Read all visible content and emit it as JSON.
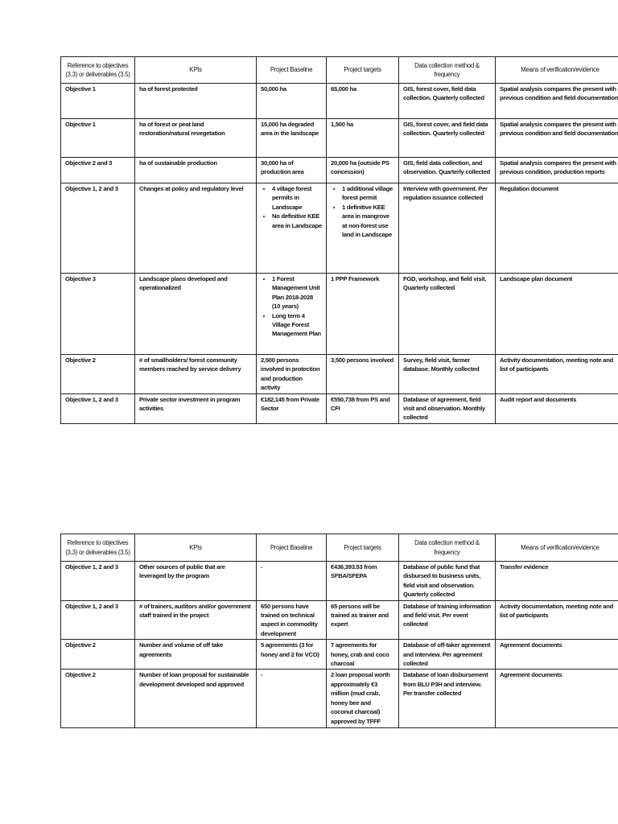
{
  "headers": [
    "Reference to objectives (3.3) or deliverables (3.5)",
    "KPIs",
    "Project Baseline",
    "Project targets",
    "Data collection method & frequency",
    "Means of verification/evidence"
  ],
  "table1": {
    "rows": [
      [
        "Objective 1",
        "ha of forest protected",
        "50,000 ha",
        "65,000 ha",
        "GIS, forest cover, field data collection. Quarterly collected",
        "Spatial analysis compares the present with previous condition and field documentation"
      ],
      [
        "Objective 1",
        "ha of forest or peat land restoration/natural revegetation",
        "15,000 ha degraded area in the landscape",
        "1,500 ha",
        "GIS, forest cover, and field data collection. Quarterly collected",
        "Spatial analysis compares the present with previous condition and field documentation"
      ],
      [
        "Objective 2 and 3",
        "ha of sustainable production",
        "30,000 ha of production area",
        "20,000 ha (outside PS concession)",
        "GIS, field data collection, and observation. Quarterly collected",
        "Spatial analysis compares the present with previous condition, production reports"
      ],
      [
        "Objective 1, 2 and 3",
        "Changes at policy and regulatory level",
        [
          "4 village forest permits in Landscape",
          "No definitive KEE area in Landscape"
        ],
        [
          "1 additional village forest permit",
          "1 definitive KEE area in mangrove at non-forest use land in Landscape"
        ],
        "Interview with government. Per regulation issuance collected",
        "Regulation document"
      ],
      [
        "Objective 3",
        "Landscape plans developed and operationalized",
        [
          "1 Forest Management Unit Plan 2018-2028 (10 years)",
          "Long term 4 Village Forest Management Plan"
        ],
        "1 PPP Framework",
        "FGD, workshop, and field visit. Quarterly collected",
        "Landscape plan document"
      ],
      [
        "Objective 2",
        "# of smallholders/ forest community members reached by service delivery",
        "2,500 persons involved in protection and production activity",
        "3,500 persons involved",
        "Survey, field visit, farmer database. Monthly collected",
        "Activity documentation, meeting note and list of participants"
      ],
      [
        "Objective 1, 2 and 3",
        "Private sector investment in program activities",
        "€182,145 from Private Sector",
        "€550,738 from PS and CFI",
        "Database of agreement, field visit and observation. Monthly collected",
        "Audit report and documents"
      ]
    ]
  },
  "table2": {
    "rows": [
      [
        "Objective 1, 2 and 3",
        "Other sources of public that are leveraged by the program",
        "-",
        "€436,393.53 from SFBA/SFEPA",
        "Database of public fund that disbursed to business units, field visit and observation. Quarterly collected",
        "Transfer evidence"
      ],
      [
        "Objective 1, 2 and 3",
        "# of trainers, auditors and/or government staff trained in the project",
        "650 persons have trained on technical aspect in commodity development",
        "65 persons will be trained as trainer and expert",
        "Database of training information and field visit. Per event collected",
        "Activity documentation, meeting note and list of participants"
      ],
      [
        "Objective 2",
        "Number and volume of off take agreements",
        "5 agreements (3 for honey and 2 for VCO)",
        "7 agreements for honey, crab and coco charcoal",
        "Database of off-taker agreement and interview. Per agreement collected",
        "Agreement documents"
      ],
      [
        "Objective 2",
        "Number of loan proposal for sustainable development developed and approved",
        "-",
        "2 loan proposal worth approximately €3 million (mud crab, honey bee and coconut charcoal) approved by TFFF",
        "Database of loan disbursement from BLU P3H and interview. Per transfer collected",
        "Agreement documents"
      ]
    ]
  }
}
